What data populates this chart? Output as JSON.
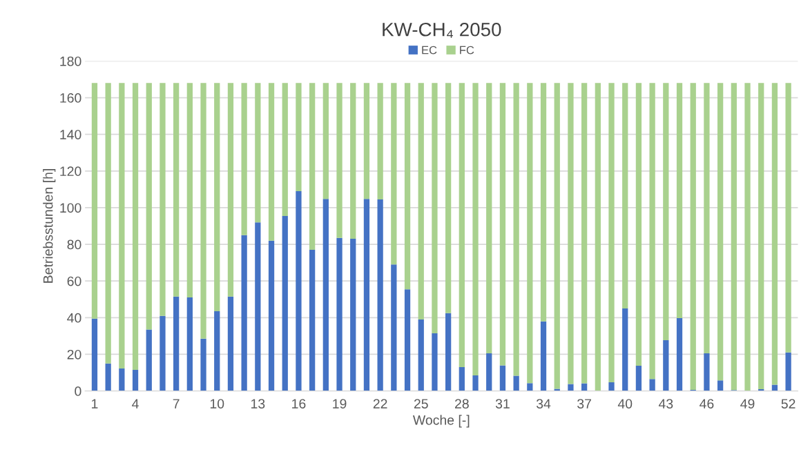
{
  "chart_data": {
    "type": "bar",
    "title": "KW-CH₄ 2050",
    "xlabel": "Woche [-]",
    "ylabel": "Betriebsstunden [h]",
    "categories": [
      "1",
      null,
      null,
      "4",
      null,
      null,
      "7",
      null,
      null,
      "10",
      null,
      null,
      "13",
      null,
      null,
      "16",
      null,
      null,
      "19",
      null,
      null,
      "22",
      null,
      null,
      "25",
      null,
      null,
      "28",
      null,
      null,
      "31",
      null,
      null,
      "34",
      null,
      null,
      "37",
      null,
      null,
      "40",
      null,
      null,
      "43",
      null,
      null,
      "46",
      null,
      null,
      "49",
      null,
      null,
      "52"
    ],
    "stacked": true,
    "legend": "top",
    "grid": "y",
    "ylim": [
      0,
      180
    ],
    "yticks": [
      0,
      20,
      40,
      60,
      80,
      100,
      120,
      140,
      160,
      180
    ],
    "series": [
      {
        "name": "EC",
        "color": "#4472c4",
        "values": [
          39.5,
          15,
          12.3,
          11.5,
          33.5,
          41,
          51.5,
          51,
          28.5,
          43.5,
          51.5,
          85,
          92,
          82,
          95.5,
          109,
          77,
          104.8,
          83.5,
          83,
          104.8,
          104.5,
          69,
          55.5,
          39,
          31.5,
          42.5,
          13,
          8.5,
          20.5,
          14,
          8.3,
          4.3,
          38,
          1.2,
          3.8,
          4.2,
          0,
          4.7,
          45,
          13.8,
          6.5,
          27.7,
          39.7,
          0.6,
          20.5,
          5.8,
          0.5,
          0,
          1,
          3.4,
          21
        ]
      },
      {
        "name": "FC",
        "color": "#a9d18e",
        "values": [
          128.5,
          153,
          155.7,
          156.5,
          134.5,
          127,
          116.5,
          117,
          139.5,
          124.5,
          116.5,
          83,
          76,
          86,
          72.5,
          59,
          91,
          63.2,
          84.5,
          85,
          63.2,
          63.5,
          99,
          112.5,
          129,
          136.5,
          125.5,
          155,
          159.5,
          147.5,
          154,
          159.7,
          163.7,
          130,
          166.8,
          164.2,
          163.8,
          168,
          163.3,
          123,
          154.2,
          161.5,
          140.3,
          128.3,
          167.4,
          147.5,
          162.2,
          167.5,
          168,
          167,
          164.6,
          147
        ]
      }
    ]
  }
}
